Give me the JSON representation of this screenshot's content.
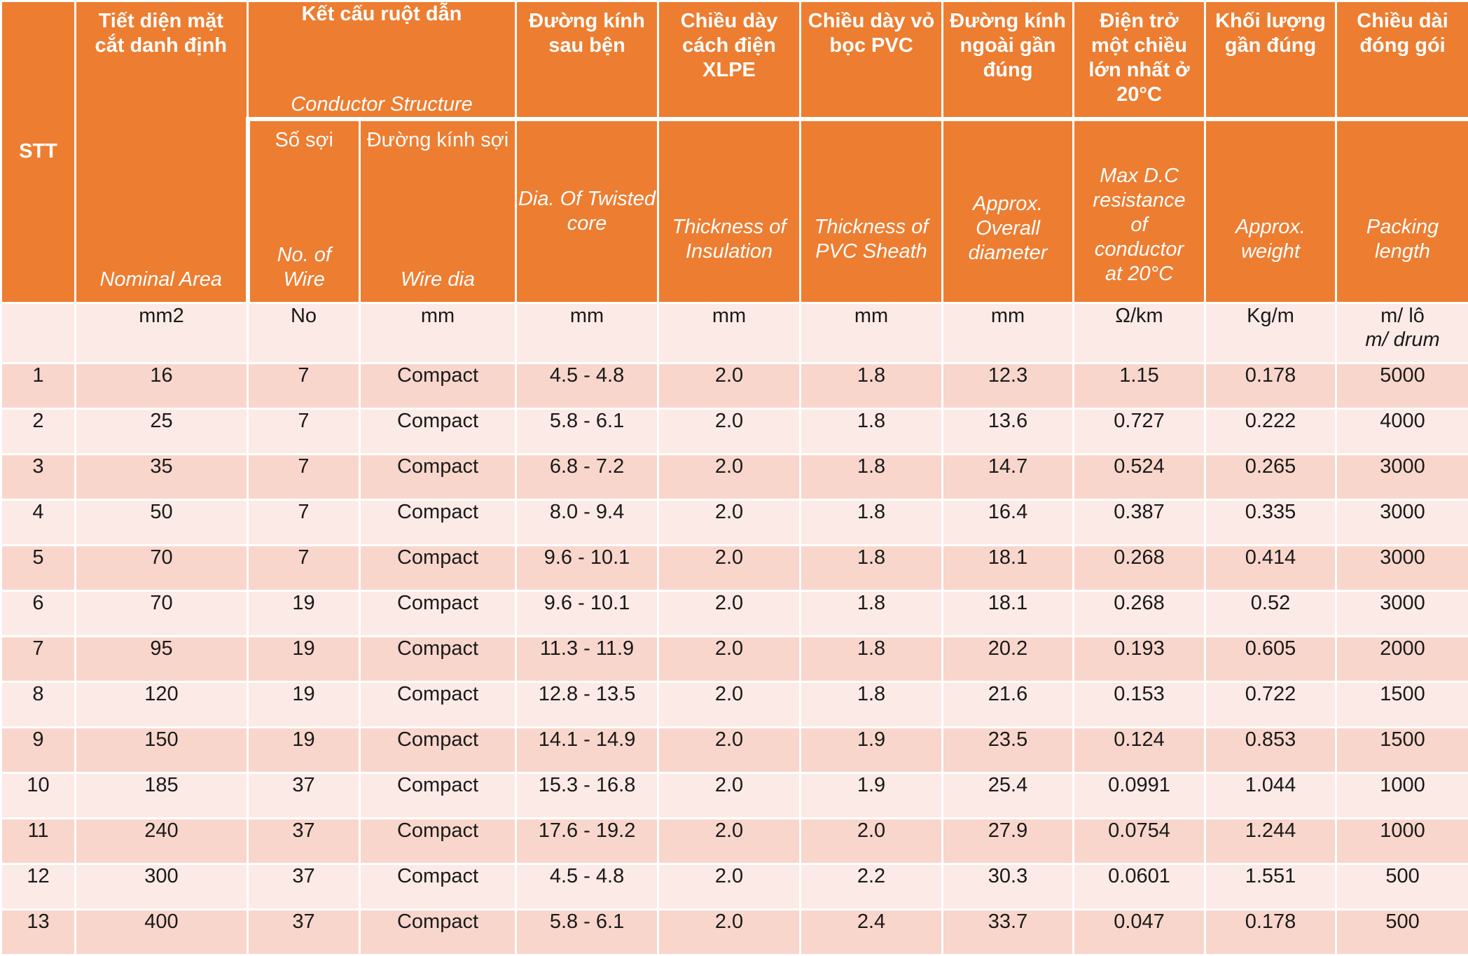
{
  "header": {
    "stt": "STT",
    "nominal_area": {
      "vi": "Tiết diện mặt cắt danh định",
      "en": "Nominal Area"
    },
    "conductor_structure": {
      "vi": "Kết cấu ruột dẫn",
      "en": "Conductor Structure"
    },
    "no_of_wire": {
      "vi": "Số sợi",
      "en": "No. of Wire"
    },
    "wire_dia": {
      "vi": "Đường kính sợi",
      "en": "Wire dia"
    },
    "twisted_core": {
      "vi": "Đường kính sau bện",
      "en": "Dia. Of Twisted core"
    },
    "insulation": {
      "vi": "Chiều dày cách điện XLPE",
      "en": "Thickness of Insulation"
    },
    "sheath": {
      "vi": "Chiều dày vỏ bọc PVC",
      "en": "Thickness of PVC Sheath"
    },
    "overall_diameter": {
      "vi": "Đường kính ngoài gần đúng",
      "en": "Approx. Overall diameter"
    },
    "resistance": {
      "vi": "Điện trở một chiều lớn nhất ở 20°C",
      "en": "Max D.C resistance of conductor at 20°C"
    },
    "weight": {
      "vi": "Khối lượng gần đúng",
      "en": "Approx. weight"
    },
    "packing": {
      "vi": "Chiều dài đóng gói",
      "en": "Packing length"
    }
  },
  "units": {
    "stt": "",
    "area": "mm2",
    "wires": "No",
    "wire_dia": "mm",
    "twisted": "mm",
    "insulation": "mm",
    "sheath": "mm",
    "overall": "mm",
    "resistance": "Ω/km",
    "weight": "Kg/m",
    "packing": "m/ lô",
    "packing_en": "m/ drum"
  },
  "rows": [
    [
      "1",
      "16",
      "7",
      "Compact",
      "4.5 - 4.8",
      "2.0",
      "1.8",
      "12.3",
      "1.15",
      "0.178",
      "5000"
    ],
    [
      "2",
      "25",
      "7",
      "Compact",
      "5.8 - 6.1",
      "2.0",
      "1.8",
      "13.6",
      "0.727",
      "0.222",
      "4000"
    ],
    [
      "3",
      "35",
      "7",
      "Compact",
      "6.8 - 7.2",
      "2.0",
      "1.8",
      "14.7",
      "0.524",
      "0.265",
      "3000"
    ],
    [
      "4",
      "50",
      "7",
      "Compact",
      "8.0 - 9.4",
      "2.0",
      "1.8",
      "16.4",
      "0.387",
      "0.335",
      "3000"
    ],
    [
      "5",
      "70",
      "7",
      "Compact",
      "9.6 - 10.1",
      "2.0",
      "1.8",
      "18.1",
      "0.268",
      "0.414",
      "3000"
    ],
    [
      "6",
      "70",
      "19",
      "Compact",
      "9.6 - 10.1",
      "2.0",
      "1.8",
      "18.1",
      "0.268",
      "0.52",
      "3000"
    ],
    [
      "7",
      "95",
      "19",
      "Compact",
      "11.3 - 11.9",
      "2.0",
      "1.8",
      "20.2",
      "0.193",
      "0.605",
      "2000"
    ],
    [
      "8",
      "120",
      "19",
      "Compact",
      "12.8 - 13.5",
      "2.0",
      "1.8",
      "21.6",
      "0.153",
      "0.722",
      "1500"
    ],
    [
      "9",
      "150",
      "19",
      "Compact",
      "14.1 - 14.9",
      "2.0",
      "1.9",
      "23.5",
      "0.124",
      "0.853",
      "1500"
    ],
    [
      "10",
      "185",
      "37",
      "Compact",
      "15.3 - 16.8",
      "2.0",
      "1.9",
      "25.4",
      "0.0991",
      "1.044",
      "1000"
    ],
    [
      "11",
      "240",
      "37",
      "Compact",
      "17.6 - 19.2",
      "2.0",
      "2.0",
      "27.9",
      "0.0754",
      "1.244",
      "1000"
    ],
    [
      "12",
      "300",
      "37",
      "Compact",
      "4.5 - 4.8",
      "2.0",
      "2.2",
      "30.3",
      "0.0601",
      "1.551",
      "500"
    ],
    [
      "13",
      "400",
      "37",
      "Compact",
      "5.8 - 6.1",
      "2.0",
      "2.4",
      "33.7",
      "0.047",
      "0.178",
      "500"
    ]
  ],
  "colors": {
    "header": "#ED7D31",
    "row_odd": "#F8D6CB",
    "row_even": "#FBEAE5"
  }
}
